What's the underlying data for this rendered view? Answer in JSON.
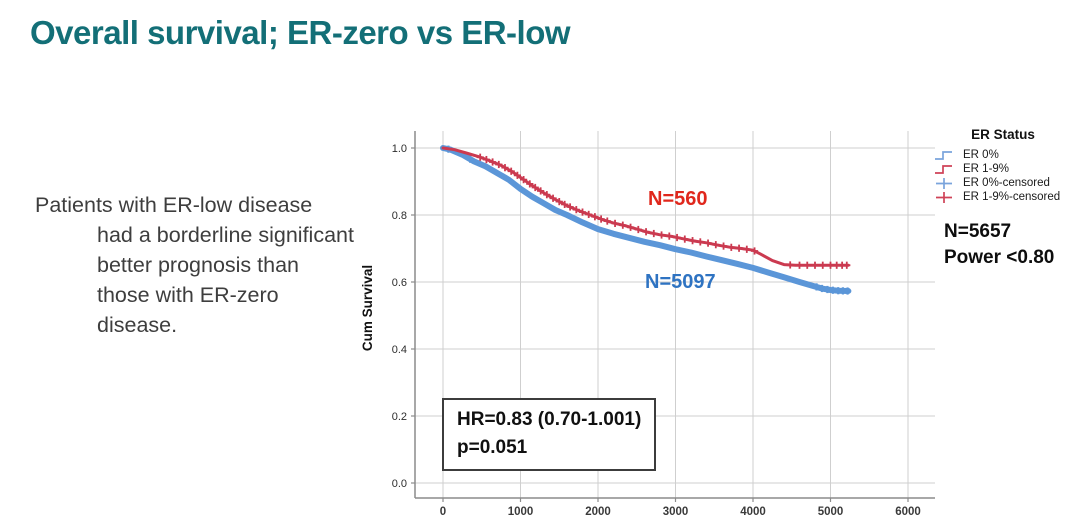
{
  "slide": {
    "title": "Overall survival; ER-zero vs ER-low",
    "body_lines": [
      "Patients with ER-low disease",
      "had a borderline significant",
      "better prognosis than",
      "those with ER-zero",
      "disease."
    ]
  },
  "chart_data": {
    "type": "line",
    "subtype": "kaplan-meier-survival",
    "title": "",
    "xlabel": "",
    "ylabel": "Cum Survival",
    "xlim": [
      -450,
      6350
    ],
    "ylim": [
      -0.05,
      1.05
    ],
    "x_ticks": [
      0,
      1000,
      2000,
      3000,
      4000,
      5000,
      6000
    ],
    "y_ticks": [
      0.0,
      0.2,
      0.4,
      0.6,
      0.8,
      1.0
    ],
    "grid": true,
    "legend_position": "right",
    "series": [
      {
        "name": "ER 0%",
        "n_label": "N=5097",
        "color": "#5b96d8",
        "label_color": "#2e73c2",
        "stroke_width": 6,
        "points": [
          [
            0,
            1.0
          ],
          [
            100,
            0.995
          ],
          [
            250,
            0.98
          ],
          [
            400,
            0.96
          ],
          [
            550,
            0.945
          ],
          [
            700,
            0.925
          ],
          [
            850,
            0.905
          ],
          [
            1000,
            0.878
          ],
          [
            1150,
            0.855
          ],
          [
            1300,
            0.835
          ],
          [
            1450,
            0.815
          ],
          [
            1600,
            0.8
          ],
          [
            1800,
            0.778
          ],
          [
            2000,
            0.758
          ],
          [
            2200,
            0.744
          ],
          [
            2400,
            0.732
          ],
          [
            2600,
            0.72
          ],
          [
            2800,
            0.71
          ],
          [
            3000,
            0.698
          ],
          [
            3200,
            0.688
          ],
          [
            3400,
            0.676
          ],
          [
            3600,
            0.665
          ],
          [
            3800,
            0.654
          ],
          [
            4000,
            0.642
          ],
          [
            4200,
            0.628
          ],
          [
            4400,
            0.614
          ],
          [
            4600,
            0.6
          ],
          [
            4750,
            0.59
          ],
          [
            4900,
            0.58
          ],
          [
            5000,
            0.576
          ],
          [
            5100,
            0.574
          ],
          [
            5230,
            0.573
          ]
        ],
        "censor_x": [
          70,
          350,
          4820,
          4890,
          4960,
          5030,
          5100,
          5160,
          5220
        ]
      },
      {
        "name": "ER 1-9%",
        "n_label": "N=560",
        "color": "#cb3a50",
        "label_color": "#e0271c",
        "stroke_width": 3,
        "points": [
          [
            0,
            1.0
          ],
          [
            150,
            0.995
          ],
          [
            300,
            0.985
          ],
          [
            450,
            0.975
          ],
          [
            600,
            0.962
          ],
          [
            750,
            0.948
          ],
          [
            900,
            0.928
          ],
          [
            1000,
            0.912
          ],
          [
            1150,
            0.888
          ],
          [
            1300,
            0.866
          ],
          [
            1450,
            0.846
          ],
          [
            1600,
            0.828
          ],
          [
            1750,
            0.813
          ],
          [
            1900,
            0.8
          ],
          [
            2050,
            0.787
          ],
          [
            2200,
            0.776
          ],
          [
            2350,
            0.768
          ],
          [
            2500,
            0.758
          ],
          [
            2650,
            0.748
          ],
          [
            2800,
            0.741
          ],
          [
            2950,
            0.736
          ],
          [
            3100,
            0.729
          ],
          [
            3250,
            0.722
          ],
          [
            3400,
            0.717
          ],
          [
            3550,
            0.71
          ],
          [
            3700,
            0.704
          ],
          [
            3850,
            0.7
          ],
          [
            4000,
            0.695
          ],
          [
            4100,
            0.683
          ],
          [
            4250,
            0.664
          ],
          [
            4400,
            0.652
          ],
          [
            4550,
            0.65
          ],
          [
            5230,
            0.65
          ]
        ],
        "censor_x": [
          480,
          560,
          640,
          720,
          800,
          880,
          960,
          1040,
          1120,
          1190,
          1260,
          1340,
          1420,
          1500,
          1570,
          1640,
          1720,
          1800,
          1880,
          1960,
          2040,
          2120,
          2220,
          2320,
          2420,
          2520,
          2620,
          2720,
          2820,
          2920,
          3020,
          3120,
          3220,
          3320,
          3420,
          3520,
          3620,
          3720,
          3820,
          3920,
          4020,
          4480,
          4600,
          4700,
          4800,
          4900,
          5000,
          5080,
          5150,
          5210
        ]
      }
    ],
    "labels": {
      "red": "N=560",
      "blue": "N=5097"
    },
    "annotation": {
      "line1": "HR=0.83 (0.70-1.001)",
      "line2": "p=0.051"
    }
  },
  "legend": {
    "title": "ER Status",
    "items": [
      {
        "label": "ER 0%",
        "glyph": "step-line-icon",
        "color": "#7aa4dc"
      },
      {
        "label": "ER 1-9%",
        "glyph": "step-line-icon",
        "color": "#cf4257"
      },
      {
        "label": "ER 0%-censored",
        "glyph": "plus-marker-icon",
        "color": "#7aa4dc"
      },
      {
        "label": "ER 1-9%-censored",
        "glyph": "plus-marker-icon",
        "color": "#cf4257"
      }
    ]
  },
  "stats": {
    "n_total": "N=5657",
    "power": "Power <0.80"
  },
  "colors": {
    "title": "#136f77",
    "body_text": "#3e3e3e",
    "grid": "#cfcfcf",
    "axis": "#8c8c8c",
    "curve_blue": "#5b96d8",
    "curve_red": "#cb3a50"
  }
}
